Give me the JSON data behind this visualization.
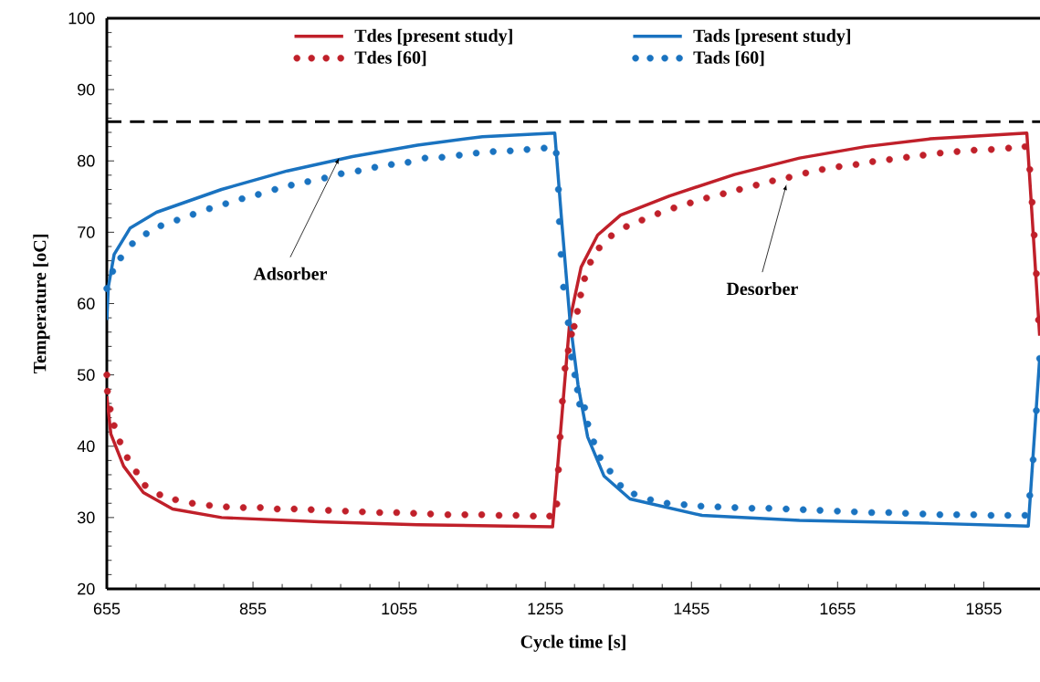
{
  "chart_data": {
    "type": "line",
    "xlabel": "Cycle time [s]",
    "ylabel": "Temperature [oC]",
    "xlim": [
      655,
      1932
    ],
    "xticks": [
      655,
      855,
      1055,
      1255,
      1455,
      1655,
      1855
    ],
    "ylim": [
      20,
      100
    ],
    "yticks": [
      20,
      30,
      40,
      50,
      60,
      70,
      80,
      90,
      100
    ],
    "grid": false,
    "legend": "top",
    "ref_lines": [
      {
        "axis": "y",
        "value": 85.5,
        "color": "#000000",
        "line_style": "dashed"
      }
    ],
    "annotations": [
      {
        "text": "Adsorber",
        "x": 973,
        "y": 80.4
      },
      {
        "text": "Desorber",
        "x": 1585,
        "y": 76.7
      }
    ],
    "series": [
      {
        "name": "Tdes [present study]",
        "type": "line",
        "color": "#c0202a",
        "marker": "none",
        "x": [
          655,
          660.5,
          678,
          705,
          745,
          812,
          946,
          1080,
          1265,
          1277.5,
          1288.7,
          1304,
          1326.6,
          1358,
          1425,
          1514,
          1603,
          1693,
          1782,
          1914,
          1931.5
        ],
        "values": [
          47,
          41.7,
          37.2,
          33.5,
          31.2,
          30.0,
          29.4,
          29.0,
          28.7,
          44.0,
          57.7,
          65.1,
          69.6,
          72.4,
          75.1,
          78.1,
          80.4,
          82.0,
          83.1,
          83.9,
          55.5
        ]
      },
      {
        "name": "Tads [present study]",
        "type": "line",
        "color": "#1a73c0",
        "marker": "none",
        "x": [
          655,
          657,
          665,
          687,
          723,
          812,
          902,
          991,
          1080,
          1169,
          1268,
          1277.5,
          1288.7,
          1299.8,
          1313,
          1335.5,
          1371,
          1469.5,
          1603,
          1782,
          1916,
          1931.5
        ],
        "values": [
          57.7,
          62.3,
          66.9,
          70.6,
          72.8,
          76.0,
          78.6,
          80.6,
          82.2,
          83.4,
          83.9,
          71.5,
          57.7,
          48.6,
          41.3,
          35.8,
          32.6,
          30.3,
          29.6,
          29.2,
          28.8,
          52.3
        ]
      },
      {
        "name": "Tdes [60]",
        "type": "scatter",
        "color": "#c0202a",
        "marker": "circle",
        "x": [
          655,
          655.8,
          659.6,
          665,
          673,
          683,
          695.4,
          707.4,
          727.5,
          749,
          772,
          795.4,
          818.6,
          841.8,
          865,
          888.2,
          911.4,
          934.6,
          958.3,
          981.5,
          1004.7,
          1028.4,
          1051.6,
          1074.8,
          1098,
          1121.7,
          1145,
          1168,
          1191.7,
          1215,
          1238.6,
          1261,
          1270.8,
          1273,
          1275.3,
          1278.4,
          1282,
          1286.4,
          1290.9,
          1294.5,
          1299,
          1303.4,
          1308.8,
          1316.8,
          1328.8,
          1345.4,
          1366,
          1387.3,
          1409,
          1431,
          1453.4,
          1475.7,
          1498.5,
          1520.8,
          1543.6,
          1566,
          1588.6,
          1611.4,
          1634,
          1657,
          1680.2,
          1703,
          1726,
          1749.3,
          1772,
          1795.4,
          1818.5,
          1841.8,
          1865.4,
          1889,
          1911.4,
          1918,
          1921.2,
          1924,
          1927,
          1930
        ],
        "values": [
          50.0,
          47.7,
          45.2,
          42.9,
          40.6,
          38.4,
          36.4,
          34.5,
          33.2,
          32.5,
          32.0,
          31.7,
          31.5,
          31.4,
          31.4,
          31.2,
          31.2,
          31.1,
          31.0,
          30.9,
          30.8,
          30.7,
          30.7,
          30.6,
          30.5,
          30.4,
          30.4,
          30.4,
          30.3,
          30.3,
          30.2,
          30.2,
          31.9,
          36.7,
          41.3,
          46.3,
          50.9,
          53.4,
          55.7,
          56.8,
          58.9,
          61.2,
          63.5,
          65.8,
          67.8,
          69.5,
          70.8,
          71.7,
          72.6,
          73.4,
          74.1,
          74.8,
          75.4,
          76.0,
          76.6,
          77.2,
          77.7,
          78.3,
          78.8,
          79.2,
          79.5,
          79.9,
          80.2,
          80.5,
          80.8,
          81.1,
          81.3,
          81.5,
          81.6,
          81.8,
          82.0,
          78.8,
          74.2,
          69.6,
          64.2,
          57.7
        ]
      },
      {
        "name": "Tads [60]",
        "type": "scatter",
        "color": "#1a73c0",
        "marker": "circle",
        "x": [
          655,
          663,
          674,
          690,
          709,
          729,
          751,
          773,
          795.4,
          817.7,
          840,
          862.3,
          885,
          907.4,
          930,
          953,
          975.7,
          999,
          1021.7,
          1044.4,
          1067.2,
          1090.4,
          1113.6,
          1137.3,
          1160.5,
          1183.7,
          1207,
          1230,
          1253.4,
          1270,
          1273,
          1274.3,
          1276.6,
          1280,
          1286.4,
          1291,
          1295.4,
          1299,
          1302,
          1308.8,
          1313.2,
          1321.3,
          1330,
          1343.6,
          1357.9,
          1376.6,
          1399,
          1421.7,
          1445,
          1468,
          1491.3,
          1514.5,
          1537.8,
          1561,
          1584.6,
          1608,
          1631,
          1654.7,
          1678,
          1701.6,
          1725,
          1748,
          1771.7,
          1795,
          1818,
          1841.3,
          1865,
          1888,
          1911.4,
          1918,
          1922.6,
          1927,
          1931.5
        ],
        "values": [
          62.1,
          64.5,
          66.4,
          68.4,
          69.8,
          70.9,
          71.7,
          72.5,
          73.3,
          74.0,
          74.7,
          75.3,
          76.0,
          76.6,
          77.1,
          77.6,
          78.2,
          78.6,
          79.1,
          79.5,
          79.8,
          80.4,
          80.5,
          80.8,
          81.1,
          81.3,
          81.4,
          81.6,
          81.8,
          81.1,
          76.0,
          71.5,
          66.9,
          62.3,
          57.3,
          52.5,
          50.0,
          47.9,
          45.9,
          45.4,
          43.1,
          40.6,
          38.4,
          36.5,
          34.5,
          33.3,
          32.5,
          32.0,
          31.8,
          31.6,
          31.5,
          31.4,
          31.3,
          31.3,
          31.2,
          31.1,
          31.0,
          30.9,
          30.8,
          30.7,
          30.7,
          30.6,
          30.5,
          30.4,
          30.4,
          30.4,
          30.3,
          30.3,
          30.3,
          33.1,
          38.1,
          45.0,
          52.3
        ]
      }
    ]
  }
}
